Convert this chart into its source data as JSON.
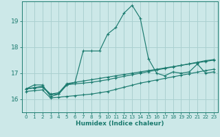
{
  "xlabel": "Humidex (Indice chaleur)",
  "xlim": [
    -0.5,
    23.5
  ],
  "ylim": [
    15.5,
    19.75
  ],
  "yticks": [
    16,
    17,
    18,
    19
  ],
  "xticks": [
    0,
    1,
    2,
    3,
    4,
    5,
    6,
    7,
    8,
    9,
    10,
    11,
    12,
    13,
    14,
    15,
    16,
    17,
    18,
    19,
    20,
    21,
    22,
    23
  ],
  "bg_color": "#cce8e8",
  "grid_color": "#aad0d0",
  "line_color": "#1a7a6e",
  "lines": [
    {
      "x": [
        0,
        1,
        2,
        3,
        4,
        5,
        6,
        7,
        8,
        9,
        10,
        11,
        12,
        13,
        14,
        15,
        16,
        17,
        18,
        19,
        20,
        21,
        22,
        23
      ],
      "y": [
        16.4,
        16.55,
        16.55,
        16.1,
        16.2,
        16.55,
        16.65,
        17.85,
        17.85,
        17.85,
        18.5,
        18.75,
        19.3,
        19.6,
        19.1,
        17.55,
        17.0,
        16.9,
        17.05,
        17.0,
        17.05,
        17.35,
        17.0,
        17.05
      ]
    },
    {
      "x": [
        0,
        1,
        2,
        3,
        4,
        5,
        6,
        7,
        8,
        9,
        10,
        11,
        12,
        13,
        14,
        15,
        16,
        17,
        18,
        19,
        20,
        21,
        22,
        23
      ],
      "y": [
        16.4,
        16.45,
        16.5,
        16.2,
        16.25,
        16.6,
        16.65,
        16.7,
        16.75,
        16.8,
        16.85,
        16.9,
        16.95,
        17.0,
        17.05,
        17.1,
        17.15,
        17.2,
        17.25,
        17.3,
        17.35,
        17.4,
        17.45,
        17.5
      ]
    },
    {
      "x": [
        0,
        1,
        2,
        3,
        4,
        5,
        6,
        7,
        8,
        9,
        10,
        11,
        12,
        13,
        14,
        15,
        16,
        17,
        18,
        19,
        20,
        21,
        22,
        23
      ],
      "y": [
        16.3,
        16.33,
        16.36,
        16.05,
        16.08,
        16.11,
        16.14,
        16.17,
        16.2,
        16.25,
        16.3,
        16.38,
        16.46,
        16.54,
        16.62,
        16.68,
        16.74,
        16.8,
        16.86,
        16.92,
        16.98,
        17.04,
        17.1,
        17.15
      ]
    },
    {
      "x": [
        0,
        1,
        2,
        3,
        4,
        5,
        6,
        7,
        8,
        9,
        10,
        11,
        12,
        13,
        14,
        15,
        16,
        17,
        18,
        19,
        20,
        21,
        22,
        23
      ],
      "y": [
        16.4,
        16.43,
        16.46,
        16.18,
        16.21,
        16.56,
        16.59,
        16.62,
        16.65,
        16.7,
        16.75,
        16.82,
        16.88,
        16.94,
        17.0,
        17.06,
        17.12,
        17.18,
        17.24,
        17.3,
        17.36,
        17.42,
        17.48,
        17.52
      ]
    }
  ]
}
